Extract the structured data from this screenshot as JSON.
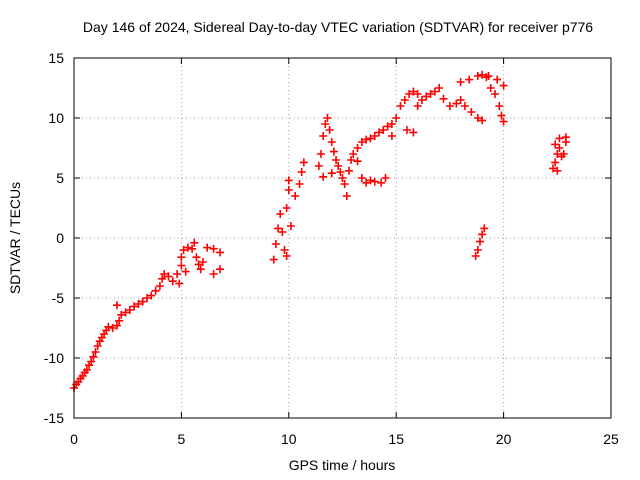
{
  "chart_data": {
    "type": "scatter",
    "title": "Day 146 of 2024, Sidereal Day-to-day VTEC variation (SDTVAR) for receiver p776",
    "xlabel": "GPS time / hours",
    "ylabel": "SDTVAR / TECUs",
    "xlim": [
      0,
      25
    ],
    "ylim": [
      -15,
      15
    ],
    "x_ticks": [
      0,
      5,
      10,
      15,
      20,
      25
    ],
    "y_ticks": [
      -15,
      -10,
      -5,
      0,
      5,
      10,
      15
    ],
    "x_tick_labels": [
      "0",
      "5",
      "10",
      "15",
      "20",
      "25"
    ],
    "y_tick_labels": [
      "-15",
      "-10",
      "-5",
      "0",
      "5",
      "10",
      "15"
    ],
    "grid": true,
    "marker": "+",
    "color": "#ff0000",
    "series": [
      {
        "points": [
          [
            0.0,
            -12.5
          ],
          [
            0.1,
            -12.2
          ],
          [
            0.2,
            -12.0
          ],
          [
            0.3,
            -11.7
          ],
          [
            0.4,
            -11.5
          ],
          [
            0.5,
            -11.2
          ],
          [
            0.6,
            -11.0
          ],
          [
            0.7,
            -10.6
          ],
          [
            0.8,
            -10.3
          ],
          [
            0.9,
            -9.9
          ],
          [
            1.0,
            -9.5
          ],
          [
            1.1,
            -9.0
          ],
          [
            1.2,
            -8.6
          ],
          [
            1.3,
            -8.3
          ],
          [
            1.4,
            -8.0
          ],
          [
            1.5,
            -7.7
          ],
          [
            1.6,
            -7.4
          ],
          [
            1.8,
            -7.5
          ],
          [
            2.0,
            -7.3
          ],
          [
            2.1,
            -6.9
          ],
          [
            2.2,
            -6.4
          ],
          [
            2.0,
            -5.6
          ],
          [
            2.4,
            -6.2
          ],
          [
            2.6,
            -6.0
          ],
          [
            2.8,
            -5.7
          ],
          [
            3.0,
            -5.5
          ],
          [
            3.2,
            -5.3
          ],
          [
            3.4,
            -5.0
          ],
          [
            3.6,
            -4.8
          ],
          [
            3.8,
            -4.4
          ],
          [
            4.0,
            -4.0
          ],
          [
            4.1,
            -3.4
          ],
          [
            4.2,
            -3.0
          ],
          [
            4.4,
            -3.2
          ],
          [
            4.6,
            -3.6
          ],
          [
            4.8,
            -3.0
          ],
          [
            5.0,
            -2.3
          ],
          [
            5.0,
            -1.6
          ],
          [
            5.1,
            -1.0
          ],
          [
            5.3,
            -0.8
          ],
          [
            5.5,
            -0.9
          ],
          [
            5.6,
            -0.4
          ],
          [
            5.7,
            -1.6
          ],
          [
            5.8,
            -2.2
          ],
          [
            5.9,
            -2.6
          ],
          [
            6.0,
            -2.0
          ],
          [
            6.2,
            -0.8
          ],
          [
            6.5,
            -0.9
          ],
          [
            6.8,
            -1.2
          ],
          [
            6.5,
            -3.0
          ],
          [
            6.8,
            -2.6
          ],
          [
            5.2,
            -2.8
          ],
          [
            4.9,
            -3.8
          ],
          [
            9.3,
            -1.8
          ],
          [
            9.4,
            -0.5
          ],
          [
            9.5,
            0.8
          ],
          [
            9.6,
            2.0
          ],
          [
            9.7,
            0.5
          ],
          [
            9.8,
            -1.0
          ],
          [
            9.9,
            -1.5
          ],
          [
            9.9,
            2.5
          ],
          [
            10.0,
            4.0
          ],
          [
            10.0,
            4.8
          ],
          [
            10.3,
            3.5
          ],
          [
            10.5,
            4.5
          ],
          [
            10.6,
            5.5
          ],
          [
            10.7,
            6.3
          ],
          [
            10.1,
            1.0
          ],
          [
            11.5,
            7.0
          ],
          [
            11.6,
            8.5
          ],
          [
            11.7,
            9.5
          ],
          [
            11.8,
            10.0
          ],
          [
            11.9,
            9.0
          ],
          [
            12.0,
            8.0
          ],
          [
            12.1,
            7.2
          ],
          [
            12.2,
            6.5
          ],
          [
            12.3,
            6.0
          ],
          [
            12.4,
            5.5
          ],
          [
            12.5,
            5.0
          ],
          [
            12.6,
            4.5
          ],
          [
            12.7,
            3.5
          ],
          [
            12.8,
            5.6
          ],
          [
            12.9,
            6.5
          ],
          [
            13.0,
            7.0
          ],
          [
            13.2,
            6.4
          ],
          [
            13.4,
            5.0
          ],
          [
            13.6,
            4.6
          ],
          [
            13.8,
            4.8
          ],
          [
            14.0,
            4.7
          ],
          [
            14.3,
            4.6
          ],
          [
            14.5,
            5.0
          ],
          [
            11.4,
            6.0
          ],
          [
            11.6,
            5.1
          ],
          [
            12.0,
            5.4
          ],
          [
            13.2,
            7.5
          ],
          [
            13.4,
            8.0
          ],
          [
            13.6,
            8.2
          ],
          [
            13.8,
            8.3
          ],
          [
            14.0,
            8.5
          ],
          [
            14.2,
            8.8
          ],
          [
            14.4,
            9.0
          ],
          [
            14.6,
            9.3
          ],
          [
            14.8,
            9.5
          ],
          [
            15.0,
            10.0
          ],
          [
            15.2,
            11.0
          ],
          [
            15.4,
            11.5
          ],
          [
            15.6,
            12.0
          ],
          [
            15.8,
            12.2
          ],
          [
            16.0,
            12.0
          ],
          [
            16.2,
            11.5
          ],
          [
            16.0,
            11.0
          ],
          [
            16.4,
            11.8
          ],
          [
            16.6,
            12.0
          ],
          [
            16.8,
            12.2
          ],
          [
            17.0,
            12.5
          ],
          [
            17.2,
            11.6
          ],
          [
            17.5,
            11.0
          ],
          [
            17.8,
            11.2
          ],
          [
            18.0,
            11.5
          ],
          [
            18.2,
            11.0
          ],
          [
            18.5,
            10.5
          ],
          [
            18.8,
            10.0
          ],
          [
            19.0,
            9.8
          ],
          [
            18.0,
            13.0
          ],
          [
            18.4,
            13.2
          ],
          [
            18.8,
            13.5
          ],
          [
            19.0,
            13.6
          ],
          [
            19.2,
            13.4
          ],
          [
            19.4,
            12.5
          ],
          [
            19.6,
            12.0
          ],
          [
            19.8,
            11.0
          ],
          [
            19.9,
            10.2
          ],
          [
            20.0,
            9.7
          ],
          [
            19.3,
            13.5
          ],
          [
            19.7,
            13.2
          ],
          [
            20.0,
            12.7
          ],
          [
            15.5,
            9.0
          ],
          [
            15.8,
            8.8
          ],
          [
            14.8,
            8.5
          ],
          [
            18.7,
            -1.5
          ],
          [
            18.8,
            -1.0
          ],
          [
            18.9,
            -0.3
          ],
          [
            19.0,
            0.3
          ],
          [
            19.1,
            0.8
          ],
          [
            22.3,
            5.8
          ],
          [
            22.4,
            6.3
          ],
          [
            22.5,
            7.0
          ],
          [
            22.6,
            7.5
          ],
          [
            22.7,
            6.8
          ],
          [
            22.8,
            7.0
          ],
          [
            22.9,
            8.0
          ],
          [
            22.4,
            7.8
          ],
          [
            22.6,
            8.3
          ],
          [
            22.9,
            8.4
          ],
          [
            22.5,
            5.6
          ]
        ]
      }
    ]
  }
}
